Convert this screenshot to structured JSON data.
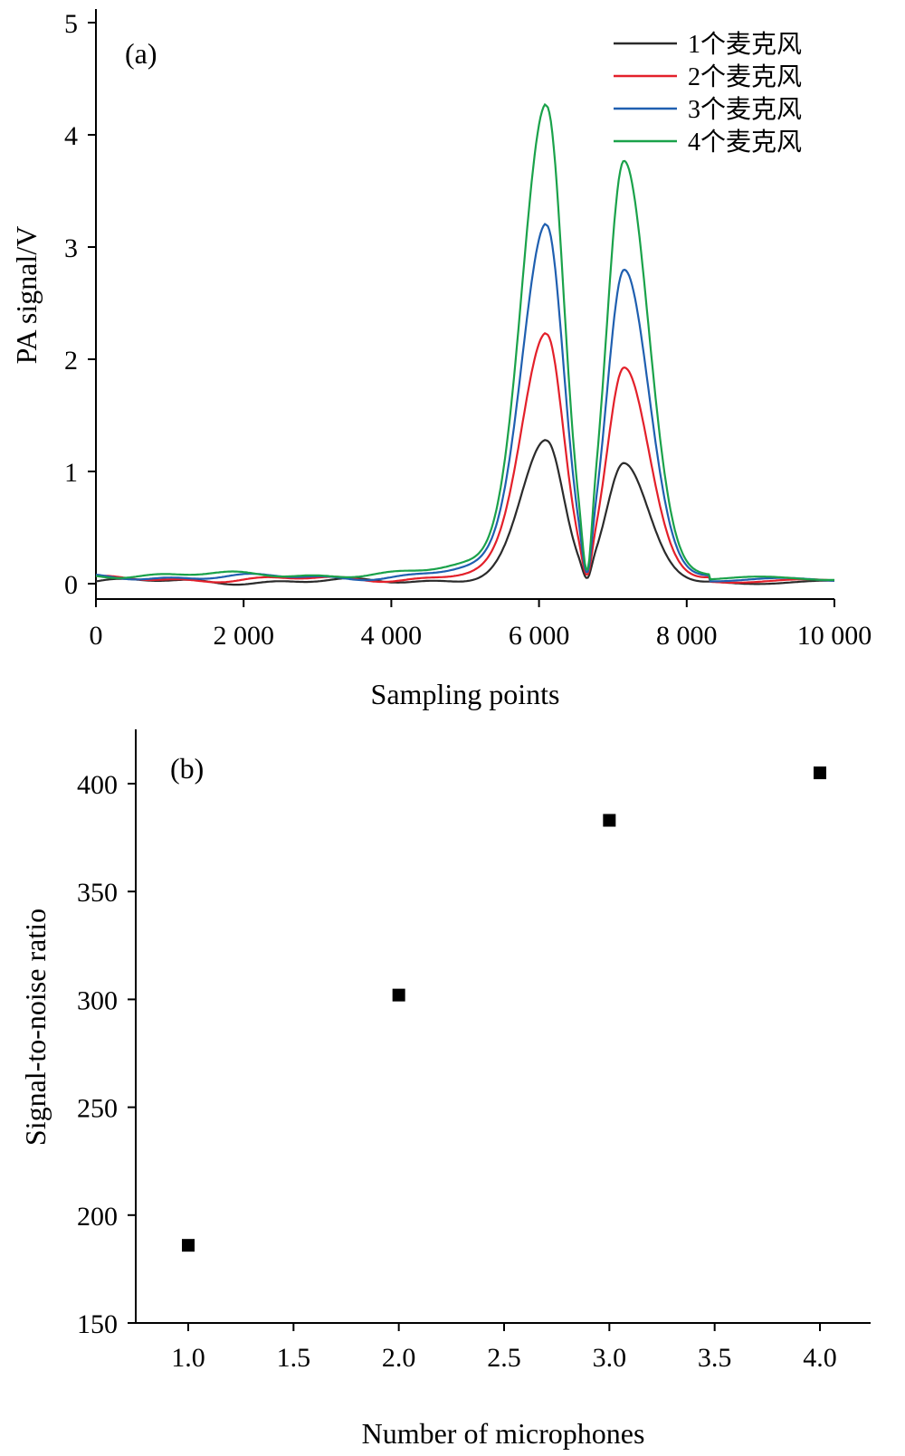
{
  "chart_data": [
    {
      "type": "line",
      "panel_label": "(a)",
      "xlabel": "Sampling points",
      "ylabel": "PA signal/V",
      "xlim": [
        0,
        10000
      ],
      "ylim": [
        -0.15,
        5
      ],
      "xticks": [
        0,
        2000,
        4000,
        6000,
        8000,
        10000
      ],
      "xtick_labels": [
        "0",
        "2 000",
        "4 000",
        "6 000",
        "8 000",
        "10 000"
      ],
      "yticks": [
        0,
        1,
        2,
        3,
        4,
        5
      ],
      "ytick_labels": [
        "0",
        "1",
        "2",
        "3",
        "4",
        "5"
      ],
      "legend_position": "top-right",
      "series": [
        {
          "name": "1个麦克风",
          "color": "#2b2b2b",
          "baseline": 0.02,
          "peak1": 1.25,
          "peak2": 1.08,
          "dip": 0.05
        },
        {
          "name": "2个麦克风",
          "color": "#e3202a",
          "baseline": 0.04,
          "peak1": 2.19,
          "peak2": 1.91,
          "dip": 0.08
        },
        {
          "name": "3个麦克风",
          "color": "#1f5fb0",
          "baseline": 0.06,
          "peak1": 3.15,
          "peak2": 2.73,
          "dip": 0.1
        },
        {
          "name": "4个麦克风",
          "color": "#1aa24a",
          "baseline": 0.08,
          "peak1": 4.18,
          "peak2": 3.66,
          "dip": 0.12
        }
      ],
      "peak_positions": [
        6100,
        7150
      ],
      "dip_position": 6650
    },
    {
      "type": "scatter",
      "panel_label": "(b)",
      "xlabel": "Number of microphones",
      "ylabel": "Signal-to-noise ratio",
      "xlim": [
        0.75,
        4.25
      ],
      "ylim": [
        150,
        425
      ],
      "xticks": [
        1.0,
        1.5,
        2.0,
        2.5,
        3.0,
        3.5,
        4.0
      ],
      "xtick_labels": [
        "1.0",
        "1.5",
        "2.0",
        "2.5",
        "3.0",
        "3.5",
        "4.0"
      ],
      "yticks": [
        150,
        200,
        250,
        300,
        350,
        400
      ],
      "ytick_labels": [
        "150",
        "200",
        "250",
        "300",
        "350",
        "400"
      ],
      "x": [
        1,
        2,
        3,
        4
      ],
      "y": [
        186,
        302,
        383,
        405
      ],
      "marker": "square",
      "color": "#000000"
    }
  ]
}
